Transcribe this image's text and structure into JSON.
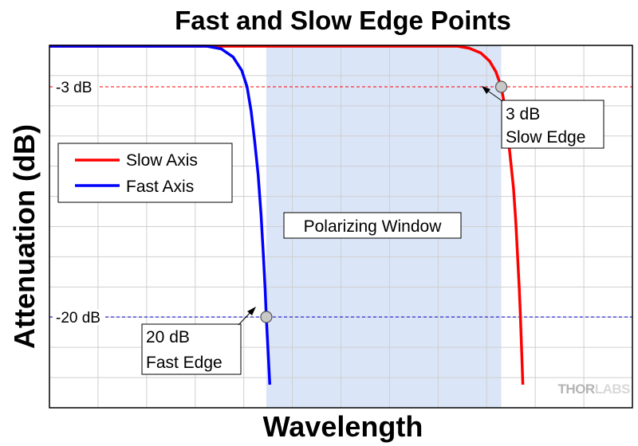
{
  "chart_data": {
    "type": "line",
    "title": "Fast and Slow Edge Points",
    "xlabel": "Wavelength",
    "ylabel": "Attenuation (dB)",
    "xlim": [
      0,
      100
    ],
    "ylim": [
      -25,
      0
    ],
    "x_ticks_labeled": false,
    "y_ticks_labeled": false,
    "grid": true,
    "legend_position": "left-upper",
    "series": [
      {
        "name": "Slow Axis",
        "color": "#ff0000",
        "points": [
          [
            0,
            0
          ],
          [
            70,
            0
          ],
          [
            72,
            -0.15
          ],
          [
            74,
            -0.5
          ],
          [
            75.5,
            -1.1
          ],
          [
            76.6,
            -1.9
          ],
          [
            77.5,
            -3
          ],
          [
            78,
            -4.2
          ],
          [
            78.5,
            -6
          ],
          [
            79,
            -8
          ],
          [
            79.6,
            -10.5
          ],
          [
            80,
            -13
          ],
          [
            80.3,
            -15.5
          ],
          [
            80.6,
            -18
          ],
          [
            80.8,
            -20
          ],
          [
            81,
            -22.5
          ],
          [
            81.2,
            -25
          ]
        ]
      },
      {
        "name": "Fast Axis",
        "color": "#0000ff",
        "points": [
          [
            0,
            0
          ],
          [
            27,
            0
          ],
          [
            29.5,
            -0.2
          ],
          [
            31.5,
            -0.8
          ],
          [
            33,
            -1.8
          ],
          [
            33.9,
            -3
          ],
          [
            34.6,
            -4.8
          ],
          [
            35.2,
            -7
          ],
          [
            35.8,
            -9.5
          ],
          [
            36.3,
            -12.5
          ],
          [
            36.7,
            -15.5
          ],
          [
            37,
            -18
          ],
          [
            37.2,
            -20
          ],
          [
            37.5,
            -22.5
          ],
          [
            37.8,
            -25
          ]
        ]
      }
    ],
    "reference_lines": [
      {
        "label": "-3 dB",
        "y": -3,
        "color": "#ff0000"
      },
      {
        "label": "-20 dB",
        "y": -20,
        "color": "#0000cc"
      }
    ],
    "region": {
      "label": "Polarizing Window",
      "x_start": 37.2,
      "x_end": 77.5,
      "color": "#dbe5f8"
    },
    "annotations": [
      {
        "lines": [
          "3 dB",
          "Slow Edge"
        ],
        "x": 77.5,
        "y": -3
      },
      {
        "lines": [
          "20 dB",
          "Fast Edge"
        ],
        "x": 37.2,
        "y": -20
      }
    ],
    "brand": {
      "thor": "THOR",
      "labs": "LABS"
    }
  }
}
